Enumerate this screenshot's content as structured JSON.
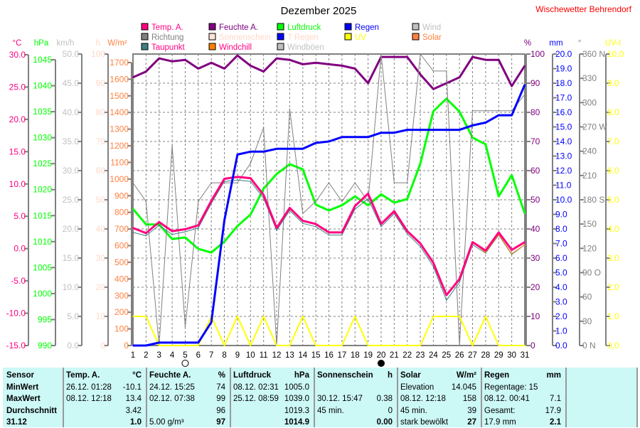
{
  "header": {
    "title": "Dezember 2025",
    "station": "Wischewetter Behrendorf"
  },
  "legend": [
    {
      "label": "Temp. A.",
      "color": "#ff0080",
      "text_color": "#ff0080"
    },
    {
      "label": "Feuchte A.",
      "color": "#800080",
      "text_color": "#800080"
    },
    {
      "label": "Luftdruck",
      "color": "#00ff00",
      "text_color": "#00ff00"
    },
    {
      "label": "Regen",
      "color": "#0000ff",
      "text_color": "#0000ff"
    },
    {
      "label": "Wind",
      "color": "#c0c0c0",
      "text_color": "#c0c0c0"
    },
    {
      "label": "Richtung",
      "color": "#808080",
      "text_color": "#808080"
    },
    {
      "label": "Sonnenschein",
      "color": "#ffe4d8",
      "text_color": "#ffd8c8"
    },
    {
      "label": "T Regen",
      "color": "#0000ff",
      "text_color": "#ffd8c8"
    },
    {
      "label": "UV",
      "color": "#ffff00",
      "text_color": "#ffff00"
    },
    {
      "label": "Solar",
      "color": "#ff8040",
      "text_color": "#ff8040"
    },
    {
      "label": "Taupunkt",
      "color": "#408080",
      "text_color": "#ff0080"
    },
    {
      "label": "Windchill",
      "color": "#ff8000",
      "text_color": "#ff0080"
    },
    {
      "label": "Windböen",
      "color": "#c0c0c0",
      "text_color": "#c0c0c0"
    }
  ],
  "chart_data": {
    "type": "line",
    "title": "Dezember 2025",
    "x": [
      1,
      2,
      3,
      4,
      5,
      6,
      7,
      8,
      9,
      10,
      11,
      12,
      13,
      14,
      15,
      16,
      17,
      18,
      19,
      20,
      21,
      22,
      23,
      24,
      25,
      26,
      27,
      28,
      29,
      30,
      31
    ],
    "xlim": [
      1,
      31
    ],
    "grid": true,
    "axes": {
      "temp": {
        "unit": "°C",
        "min": -15,
        "max": 30,
        "step": 5,
        "dec": 1,
        "color": "#ff0080"
      },
      "pressure": {
        "unit": "hPa",
        "min": 990,
        "max": 1045,
        "step": 5,
        "dec": 0,
        "color": "#00ff00"
      },
      "wind": {
        "unit": "km/h",
        "min": 0,
        "max": 50,
        "step": 5,
        "dec": 1,
        "color": "#c0c0c0"
      },
      "sunshine": {
        "unit": "h",
        "min": 0,
        "max": 100,
        "step": 10,
        "dec": 0,
        "color": "#ffd8c8"
      },
      "solar": {
        "unit": "W/m²",
        "min": 0,
        "max": 1700,
        "step": 100,
        "dec": 0,
        "color": "#ff8040",
        "top": 1700
      },
      "humidity": {
        "unit": "%",
        "min": 0,
        "max": 100,
        "step": 10,
        "dec": 0,
        "color": "#800080"
      },
      "rain": {
        "unit": "mm",
        "min": 0,
        "max": 20,
        "step": 1,
        "dec": 1,
        "color": "#0000ff"
      },
      "direction": {
        "unit": "°",
        "min": 0,
        "max": 360,
        "step": 30,
        "dec": 0,
        "color": "#808080",
        "labels": [
          "0 N",
          "30",
          "60",
          "90 O",
          "120",
          "150",
          "180 S",
          "210",
          "240",
          "270 W",
          "300",
          "330",
          "360 N"
        ]
      },
      "uv": {
        "unit": "UV-I",
        "min": 0,
        "max": 10,
        "step": 1,
        "dec": 1,
        "color": "#ffff00"
      }
    },
    "series": [
      {
        "name": "Feuchte A.",
        "axis": "humidity",
        "color": "#800080",
        "width": 3,
        "values": [
          92,
          94,
          98.5,
          97.5,
          98,
          95,
          97,
          95,
          99.5,
          96,
          94,
          98.5,
          98,
          96.5,
          97,
          96.5,
          96,
          95,
          90,
          99,
          99,
          99,
          93,
          88,
          90,
          92,
          99,
          98,
          98,
          89,
          96
        ]
      },
      {
        "name": "Luftdruck",
        "axis": "pressure",
        "color": "#00ff00",
        "width": 3,
        "values": [
          1016.3,
          1013.3,
          1013.3,
          1010.5,
          1010.8,
          1008.6,
          1007.9,
          1010,
          1013,
          1015.2,
          1020.2,
          1023,
          1024.9,
          1023.9,
          1017.1,
          1016,
          1017,
          1018.7,
          1017,
          1019.1,
          1017.5,
          1018.2,
          1025,
          1035.1,
          1037.5,
          1035,
          1030,
          1028.7,
          1018.7,
          1022.8,
          1015.4
        ]
      },
      {
        "name": "Richtung",
        "axis": "direction",
        "color": "#808080",
        "width": 1,
        "values": [
          201,
          178,
          0,
          247,
          23,
          178,
          201,
          201,
          201,
          225,
          269,
          0,
          292,
          163,
          178,
          201,
          178,
          201,
          178,
          360,
          201,
          201,
          360,
          339,
          339,
          0,
          290,
          290,
          290,
          290,
          310
        ]
      },
      {
        "name": "Taupunkt",
        "axis": "temp",
        "color": "#408080",
        "width": 1,
        "values": [
          2.5,
          2.0,
          3.6,
          2.2,
          2.6,
          3.2,
          7.0,
          10.4,
          10.6,
          10.4,
          7.8,
          2.8,
          5.9,
          3.9,
          3.4,
          2.1,
          2.1,
          6.1,
          7.7,
          3.4,
          5.4,
          2.3,
          0.3,
          -2.8,
          -8.0,
          -5.2,
          0.6,
          -0.7,
          2.1,
          -0.9,
          0.6
        ]
      },
      {
        "name": "Windchill",
        "axis": "temp",
        "color": "#ff8000",
        "width": 1,
        "values": [
          3.2,
          2.4,
          4.1,
          2.7,
          3.0,
          3.6,
          7.4,
          10.8,
          11.1,
          10.9,
          8.3,
          3.2,
          6.3,
          4.3,
          3.8,
          2.5,
          2.5,
          6.6,
          8.5,
          3.8,
          5.8,
          2.7,
          0.8,
          -2.2,
          -7.2,
          -4.7,
          1.0,
          -0.6,
          2.2,
          -0.8,
          0.6
        ]
      },
      {
        "name": "Temp. A.",
        "axis": "temp",
        "color": "#ff0080",
        "width": 3,
        "values": [
          3.2,
          2.4,
          4.1,
          2.7,
          3.0,
          3.6,
          7.4,
          10.8,
          11.1,
          10.9,
          8.3,
          3.2,
          6.3,
          4.3,
          3.8,
          2.5,
          2.5,
          6.6,
          8.5,
          3.8,
          5.8,
          2.7,
          0.8,
          -2.2,
          -7.2,
          -4.7,
          1.0,
          -0.3,
          2.5,
          -0.2,
          1.0
        ]
      },
      {
        "name": "UV",
        "axis": "uv",
        "color": "#ffff00",
        "width": 2,
        "values": [
          1,
          1,
          0,
          0,
          0,
          0,
          1,
          0,
          1,
          0,
          1,
          0,
          0,
          1,
          0,
          0,
          0,
          1,
          0,
          0,
          0,
          0,
          0,
          1,
          1,
          1,
          0,
          1,
          0,
          0,
          0
        ]
      },
      {
        "name": "Regen",
        "axis": "rain",
        "color": "#0000ff",
        "width": 3,
        "values": [
          0,
          0,
          0.2,
          0.2,
          0.2,
          0.2,
          1.6,
          8.6,
          13.1,
          13.3,
          13.3,
          13.5,
          13.5,
          13.5,
          13.9,
          14.0,
          14.3,
          14.3,
          14.3,
          14.6,
          14.6,
          14.8,
          14.8,
          14.8,
          14.8,
          14.8,
          15.1,
          15.3,
          15.8,
          15.8,
          17.9
        ]
      }
    ],
    "moon_phases": [
      {
        "day": 5,
        "phase": "full"
      },
      {
        "day": 20,
        "phase": "new"
      }
    ]
  },
  "stats": {
    "sensor": {
      "header": "Sensor",
      "rows": [
        "MinWert",
        "MaxWert",
        "Durchschnitt",
        "31.12"
      ]
    },
    "temp": {
      "header": "Temp. A.",
      "unit": "°C",
      "rows": [
        [
          "26.12.  01:28",
          "-10.1"
        ],
        [
          "08.12.  12:18",
          "13.4"
        ],
        [
          "",
          "3.42"
        ],
        [
          "",
          "1.0"
        ]
      ]
    },
    "humidity": {
      "header": "Feuchte A.",
      "unit": "%",
      "rows": [
        [
          "24.12.  15:25",
          "74"
        ],
        [
          "02.12.  07:38",
          "99"
        ],
        [
          "",
          "96"
        ],
        [
          "5.00 g/m³",
          "97"
        ]
      ]
    },
    "pressure": {
      "header": "Luftdruck",
      "unit": "hPa",
      "rows": [
        [
          "08.12.  02:31",
          "1005.0"
        ],
        [
          "25.12.  08:59",
          "1039.0"
        ],
        [
          "",
          "1019.3"
        ],
        [
          "",
          "1014.9"
        ]
      ]
    },
    "sunshine": {
      "header": "Sonnenschein",
      "unit": "h",
      "rows": [
        [
          "",
          ""
        ],
        [
          "30.12.  15:47",
          "0.38"
        ],
        [
          "45 min.",
          "0"
        ],
        [
          "",
          "0.00"
        ]
      ]
    },
    "solar": {
      "header": "Solar",
      "unit": "W/m²",
      "rows": [
        [
          "Elevation",
          "14.045"
        ],
        [
          "08.12.  12:18",
          "158"
        ],
        [
          "45 min.",
          "39"
        ],
        [
          "stark bewölkt",
          "27"
        ]
      ]
    },
    "rain": {
      "header": "Regen",
      "unit": "mm",
      "rows": [
        [
          "Regentage: 15",
          ""
        ],
        [
          "08.12.  00:41",
          "7.1"
        ],
        [
          "Gesamt:",
          "17.9"
        ],
        [
          "17.9 mm",
          "2.1"
        ]
      ]
    }
  }
}
